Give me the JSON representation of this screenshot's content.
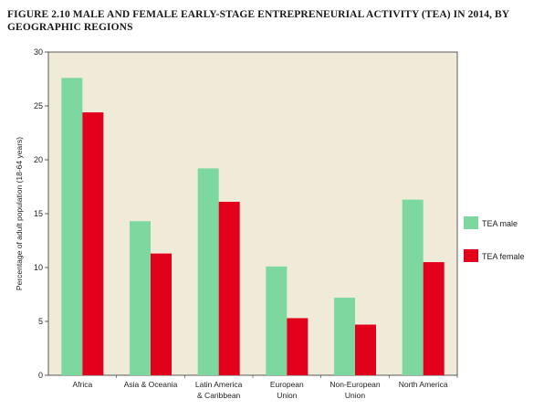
{
  "chart_data": {
    "type": "bar",
    "title": "FIGURE 2.10  MALE AND FEMALE EARLY-STAGE ENTREPRENEURIAL ACTIVITY (TEA) IN 2014, BY GEOGRAPHIC REGIONS",
    "ylabel": "Percentage of adult population (18-64 years)",
    "xlabel": "",
    "ylim": [
      0,
      30
    ],
    "yticks": [
      0,
      5,
      10,
      15,
      20,
      25,
      30
    ],
    "categories": [
      [
        "Africa"
      ],
      [
        "Asia & Oceania"
      ],
      [
        "Latin America",
        "& Caribbean"
      ],
      [
        "European",
        "Union"
      ],
      [
        "Non-European",
        "Union"
      ],
      [
        "North America"
      ]
    ],
    "series": [
      {
        "name": "TEA male",
        "color": "#7dd8a0",
        "values": [
          27.6,
          14.3,
          19.2,
          10.1,
          7.2,
          16.3
        ]
      },
      {
        "name": "TEA female",
        "color": "#e3001b",
        "values": [
          24.4,
          11.3,
          16.1,
          5.3,
          4.7,
          10.5
        ]
      }
    ],
    "plot_background": "#efebd8",
    "legend_position": "right",
    "grid": false
  }
}
